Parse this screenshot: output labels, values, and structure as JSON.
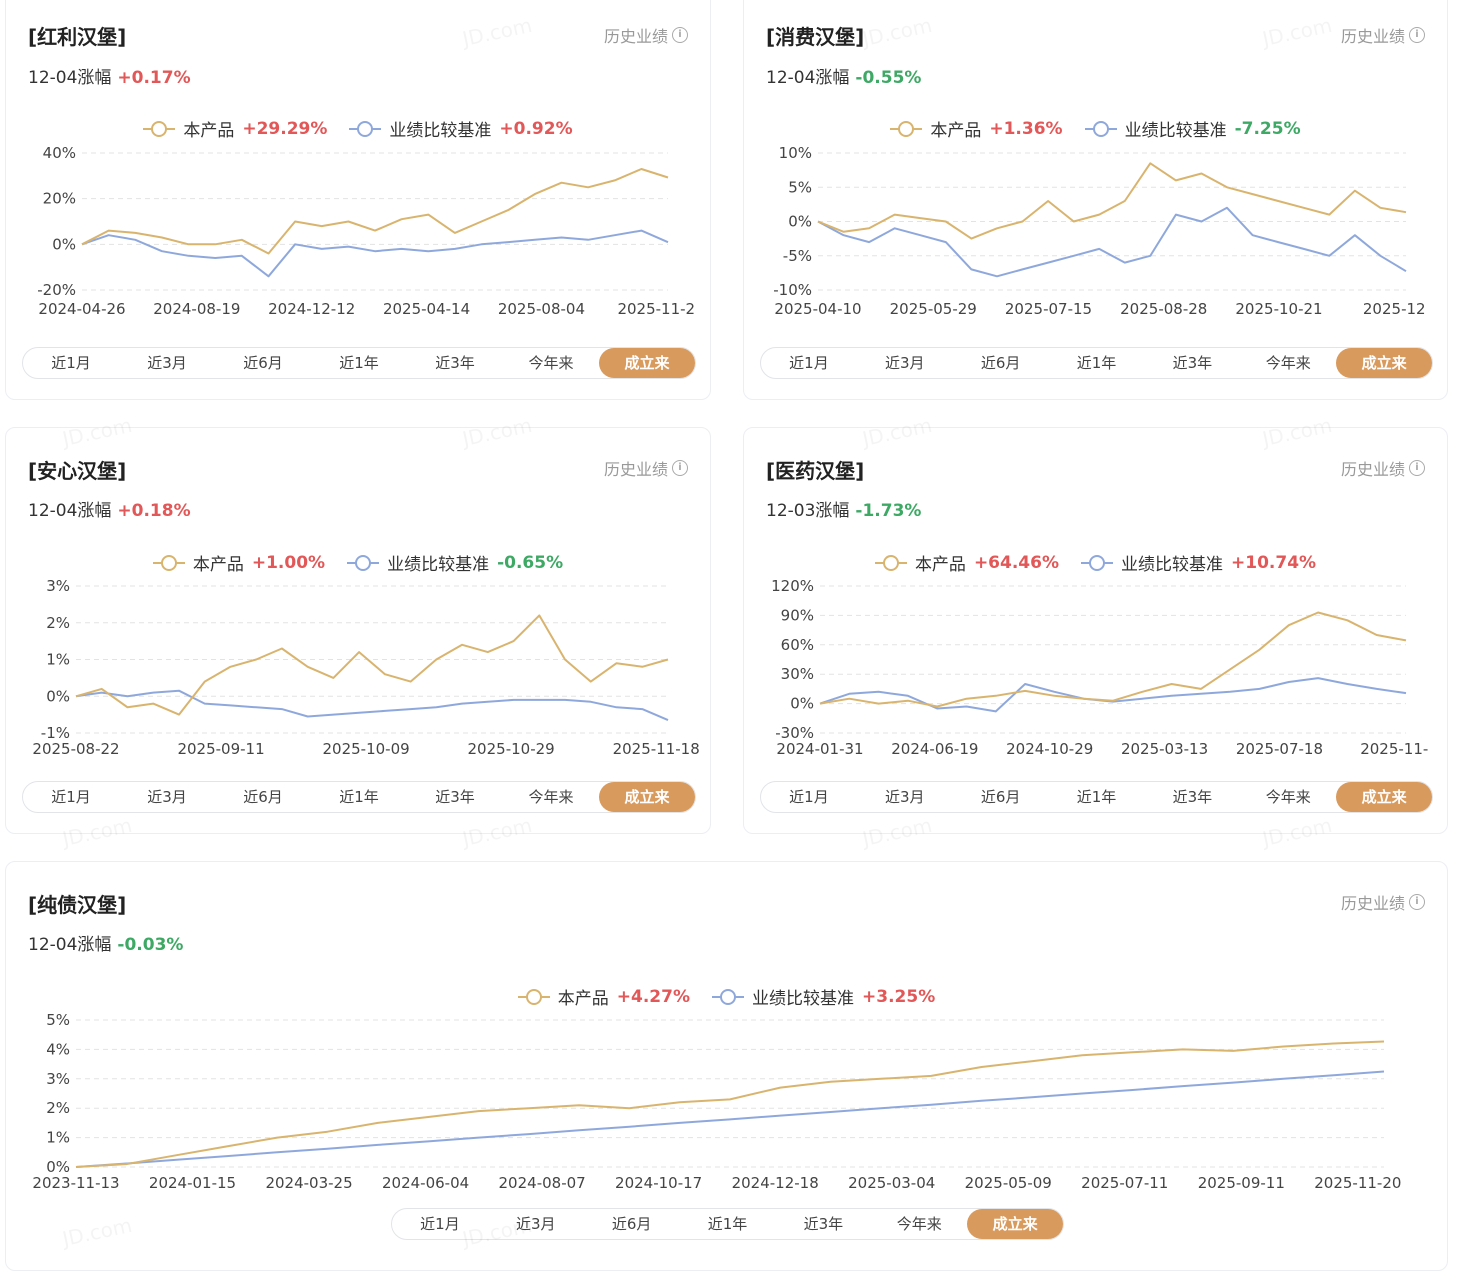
{
  "common": {
    "history_label": "历史业绩",
    "legend_product": "本产品",
    "legend_benchmark": "业绩比较基准",
    "tabs": [
      "近1月",
      "近3月",
      "近6月",
      "近1年",
      "近3年",
      "今年来",
      "成立来"
    ],
    "active_tab": "成立来",
    "watermark": "JD.com",
    "colors": {
      "product": "#d9b46e",
      "benchmark": "#8fa8dc",
      "up": "#e25757",
      "down": "#3ea865",
      "tab_active": "#d99a5e"
    }
  },
  "cards": [
    {
      "title": "[红利汉堡]",
      "change_label": "12-04涨幅",
      "change_value": "+0.17%",
      "product_return": "+29.29%",
      "benchmark_return": "+0.92%",
      "chart_data": {
        "type": "line",
        "ylim": [
          -20,
          40
        ],
        "y_ticks": [
          40,
          20,
          0,
          -20
        ],
        "y_tick_labels": [
          "40%",
          "20%",
          "0%",
          "-20%"
        ],
        "x_tick_labels": [
          "2024-04-26",
          "2024-08-19",
          "2024-12-12",
          "2025-04-14",
          "2025-08-04",
          "2025-11-2"
        ],
        "series": [
          {
            "name": "本产品",
            "values": [
              0,
              6,
              5,
              3,
              0,
              0,
              2,
              -4,
              10,
              8,
              10,
              6,
              11,
              13,
              5,
              10,
              15,
              22,
              27,
              25,
              28,
              33,
              29.29
            ]
          },
          {
            "name": "业绩比较基准",
            "values": [
              0,
              4,
              2,
              -3,
              -5,
              -6,
              -5,
              -14,
              0,
              -2,
              -1,
              -3,
              -2,
              -3,
              -2,
              0,
              1,
              2,
              3,
              2,
              4,
              6,
              0.92
            ]
          }
        ]
      }
    },
    {
      "title": "[消费汉堡]",
      "change_label": "12-04涨幅",
      "change_value": "-0.55%",
      "product_return": "+1.36%",
      "benchmark_return": "-7.25%",
      "chart_data": {
        "type": "line",
        "ylim": [
          -10,
          10
        ],
        "y_ticks": [
          10,
          5,
          0,
          -5,
          -10
        ],
        "y_tick_labels": [
          "10%",
          "5%",
          "0%",
          "-5%",
          "-10%"
        ],
        "x_tick_labels": [
          "2025-04-10",
          "2025-05-29",
          "2025-07-15",
          "2025-08-28",
          "2025-10-21",
          "2025-12"
        ],
        "series": [
          {
            "name": "本产品",
            "values": [
              0,
              -1.5,
              -1,
              1,
              0.5,
              0,
              -2.5,
              -1,
              0,
              3,
              0,
              1,
              3,
              8.5,
              6,
              7,
              5,
              4,
              3,
              2,
              1,
              4.5,
              2,
              1.36
            ]
          },
          {
            "name": "业绩比较基准",
            "values": [
              0,
              -2,
              -3,
              -1,
              -2,
              -3,
              -7,
              -8,
              -7,
              -6,
              -5,
              -4,
              -6,
              -5,
              1,
              0,
              2,
              -2,
              -3,
              -4,
              -5,
              -2,
              -5,
              -7.25
            ]
          }
        ]
      }
    },
    {
      "title": "[安心汉堡]",
      "change_label": "12-04涨幅",
      "change_value": "+0.18%",
      "product_return": "+1.00%",
      "benchmark_return": "-0.65%",
      "chart_data": {
        "type": "line",
        "ylim": [
          -1,
          3
        ],
        "y_ticks": [
          3,
          2,
          1,
          0,
          -1
        ],
        "y_tick_labels": [
          "3%",
          "2%",
          "1%",
          "0%",
          "-1%"
        ],
        "x_tick_labels": [
          "2025-08-22",
          "2025-09-11",
          "2025-10-09",
          "2025-10-29",
          "2025-11-18"
        ],
        "series": [
          {
            "name": "本产品",
            "values": [
              0,
              0.2,
              -0.3,
              -0.2,
              -0.5,
              0.4,
              0.8,
              1.0,
              1.3,
              0.8,
              0.5,
              1.2,
              0.6,
              0.4,
              1.0,
              1.4,
              1.2,
              1.5,
              2.2,
              1.0,
              0.4,
              0.9,
              0.8,
              1.0
            ]
          },
          {
            "name": "业绩比较基准",
            "values": [
              0,
              0.1,
              0.0,
              0.1,
              0.15,
              -0.2,
              -0.25,
              -0.3,
              -0.35,
              -0.55,
              -0.5,
              -0.45,
              -0.4,
              -0.35,
              -0.3,
              -0.2,
              -0.15,
              -0.1,
              -0.1,
              -0.1,
              -0.15,
              -0.3,
              -0.35,
              -0.65
            ]
          }
        ]
      }
    },
    {
      "title": "[医药汉堡]",
      "change_label": "12-03涨幅",
      "change_value": "-1.73%",
      "product_return": "+64.46%",
      "benchmark_return": "+10.74%",
      "chart_data": {
        "type": "line",
        "ylim": [
          -30,
          120
        ],
        "y_ticks": [
          120,
          90,
          60,
          30,
          0,
          -30
        ],
        "y_tick_labels": [
          "120%",
          "90%",
          "60%",
          "30%",
          "0%",
          "-30%"
        ],
        "x_tick_labels": [
          "2024-01-31",
          "2024-06-19",
          "2024-10-29",
          "2025-03-13",
          "2025-07-18",
          "2025-11-"
        ],
        "series": [
          {
            "name": "本产品",
            "values": [
              0,
              5,
              0,
              3,
              -3,
              5,
              8,
              13,
              8,
              5,
              3,
              12,
              20,
              15,
              35,
              55,
              80,
              93,
              85,
              70,
              64.46
            ]
          },
          {
            "name": "业绩比较基准",
            "values": [
              0,
              10,
              12,
              8,
              -5,
              -3,
              -8,
              20,
              12,
              5,
              2,
              5,
              8,
              10,
              12,
              15,
              22,
              26,
              20,
              15,
              10.74
            ]
          }
        ]
      }
    },
    {
      "title": "[纯债汉堡]",
      "change_label": "12-04涨幅",
      "change_value": "-0.03%",
      "product_return": "+4.27%",
      "benchmark_return": "+3.25%",
      "chart_data": {
        "type": "line",
        "ylim": [
          0,
          5
        ],
        "y_ticks": [
          5,
          4,
          3,
          2,
          1,
          0
        ],
        "y_tick_labels": [
          "5%",
          "4%",
          "3%",
          "2%",
          "1%",
          "0%"
        ],
        "x_tick_labels": [
          "2023-11-13",
          "2024-01-15",
          "2024-03-25",
          "2024-06-04",
          "2024-08-07",
          "2024-10-17",
          "2024-12-18",
          "2025-03-04",
          "2025-05-09",
          "2025-07-11",
          "2025-09-11",
          "2025-11-20"
        ],
        "series": [
          {
            "name": "本产品",
            "values": [
              0,
              0.1,
              0.4,
              0.7,
              1.0,
              1.2,
              1.5,
              1.7,
              1.9,
              2.0,
              2.1,
              2.0,
              2.2,
              2.3,
              2.7,
              2.9,
              3.0,
              3.1,
              3.4,
              3.6,
              3.8,
              3.9,
              4.0,
              3.95,
              4.1,
              4.2,
              4.27
            ]
          },
          {
            "name": "业绩比较基准",
            "values": [
              0,
              0.12,
              0.25,
              0.37,
              0.5,
              0.62,
              0.75,
              0.87,
              1.0,
              1.12,
              1.25,
              1.37,
              1.5,
              1.62,
              1.75,
              1.87,
              2.0,
              2.12,
              2.25,
              2.37,
              2.5,
              2.62,
              2.75,
              2.87,
              3.0,
              3.12,
              3.25
            ]
          }
        ]
      }
    }
  ]
}
